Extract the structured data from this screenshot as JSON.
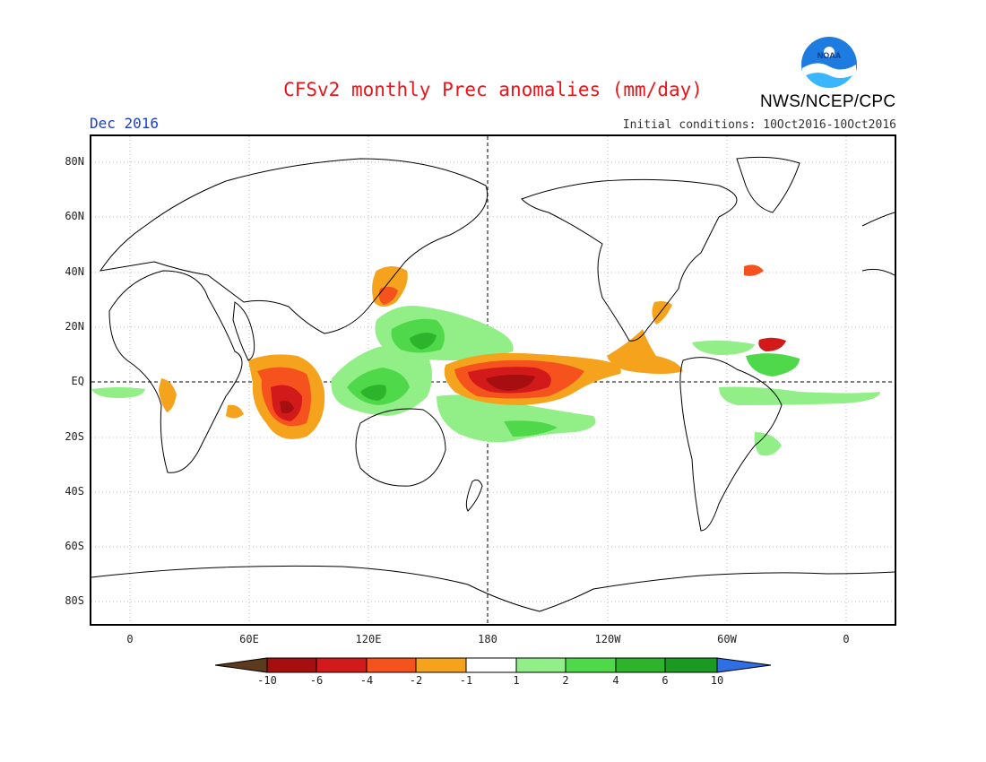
{
  "title": "CFSv2 monthly Prec anomalies (mm/day)",
  "month_label": "Dec 2016",
  "initial_conditions": "Initial conditions: 10Oct2016-10Oct2016",
  "agency": "NWS/NCEP/CPC",
  "logo_text": "NOAA",
  "lat_labels": [
    "80N",
    "60N",
    "40N",
    "20N",
    "EQ",
    "20S",
    "40S",
    "60S",
    "80S"
  ],
  "lon_labels": [
    "0",
    "60E",
    "120E",
    "180",
    "120W",
    "60W",
    "0"
  ],
  "colorbar": {
    "labels": [
      "-10",
      "-6",
      "-4",
      "-2",
      "-1",
      "1",
      "2",
      "4",
      "6",
      "10"
    ],
    "colors": [
      "#5b3a1e",
      "#a50f0f",
      "#d31a1a",
      "#f5521d",
      "#f5a21d",
      "#ffffff",
      "#92ee86",
      "#4fd94a",
      "#2eb42c",
      "#1a9a22",
      "#2f6fe6"
    ]
  }
}
